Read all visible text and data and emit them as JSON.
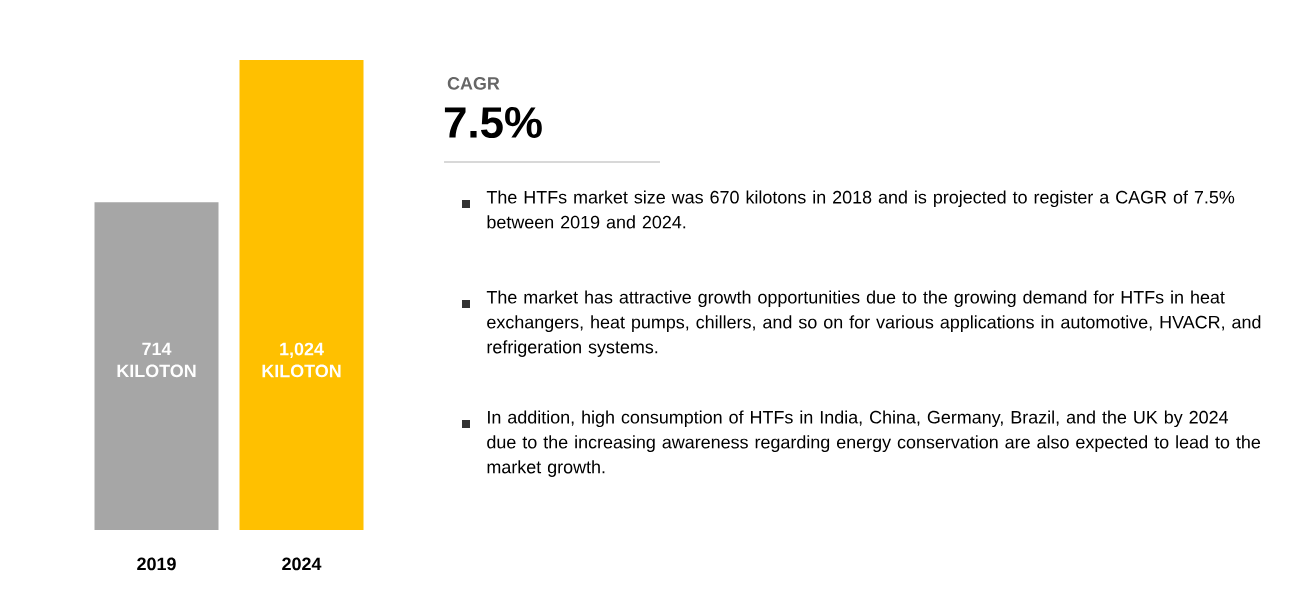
{
  "chart_data": {
    "type": "bar",
    "categories": [
      "2019",
      "2024"
    ],
    "values": [
      714,
      1024
    ],
    "colors": [
      "#a6a6a6",
      "#ffc000"
    ],
    "value_labels": [
      "714 KILOTON",
      "1,024 KILOTON"
    ],
    "annotations": [
      "CAGR",
      "7.5%",
      "The HTFs market size was 670 kilotons in 2018 and is projected to register a CAGR of 7.5% between 2019 and 2024.",
      "The market has attractive growth opportunities due to the growing demand for HTFs in heat exchangers, heat pumps, chillers, and so on for various applications in automotive, HVACR, and refrigeration systems.",
      "In addition, high consumption of HTFs in India, China, Germany, Brazil, and the UK by 2024 due to the increasing awareness regarding energy conservation are also expected to lead to the market growth."
    ]
  }
}
